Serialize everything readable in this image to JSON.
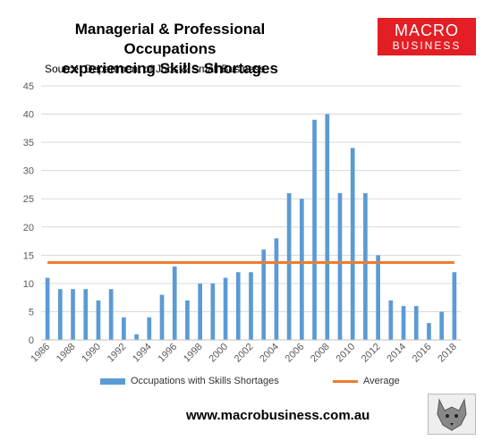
{
  "title_line1": "Managerial & Professional Occupations",
  "title_line2": "experiencing Skills Shortages",
  "source": "Source: Department of Jobs & Small Business",
  "logo": {
    "line1": "MACRO",
    "line2": "BUSINESS",
    "bg": "#e31e24"
  },
  "url": "www.macrobusiness.com.au",
  "colors": {
    "bar": "#5b9bd5",
    "average": "#ed7d31",
    "grid": "#d9d9d9"
  },
  "chart_data": {
    "type": "bar",
    "categories": [
      "1986",
      "1987",
      "1988",
      "1989",
      "1990",
      "1991",
      "1992",
      "1993",
      "1994",
      "1995",
      "1996",
      "1997",
      "1998",
      "1999",
      "2000",
      "2001",
      "2002",
      "2003",
      "2004",
      "2005",
      "2006",
      "2007",
      "2008",
      "2009",
      "2010",
      "2011",
      "2012",
      "2013",
      "2014",
      "2015",
      "2016",
      "2017",
      "2018"
    ],
    "x_tick_labels": [
      "1986",
      "1988",
      "1990",
      "1992",
      "1994",
      "1996",
      "1998",
      "2000",
      "2002",
      "2004",
      "2006",
      "2008",
      "2010",
      "2012",
      "2014",
      "2016",
      "2018"
    ],
    "series": [
      {
        "name": "Occupations with Skills Shortages",
        "type": "bar",
        "values": [
          11,
          9,
          9,
          9,
          7,
          9,
          4,
          1,
          4,
          8,
          13,
          7,
          10,
          10,
          11,
          12,
          12,
          16,
          18,
          26,
          25,
          39,
          40,
          26,
          34,
          26,
          15,
          7,
          6,
          6,
          3,
          5,
          12
        ]
      },
      {
        "name": "Average",
        "type": "line",
        "value": 13.7
      }
    ],
    "ylim": [
      0,
      45
    ],
    "y_ticks": [
      "0",
      "5",
      "10",
      "15",
      "20",
      "25",
      "30",
      "35",
      "40",
      "45"
    ],
    "grid": true,
    "legend": "bottom"
  }
}
